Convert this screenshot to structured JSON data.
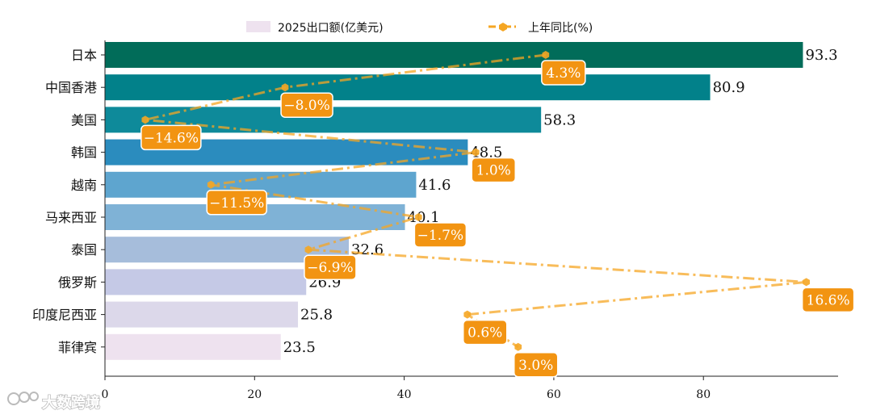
{
  "chart_data": {
    "type": "bar",
    "orientation": "horizontal",
    "categories": [
      "日本",
      "中国香港",
      "美国",
      "韩国",
      "越南",
      "马来西亚",
      "泰国",
      "俄罗斯",
      "印度尼西亚",
      "菲律宾"
    ],
    "series": [
      {
        "name": "2025出口额(亿美元)",
        "type": "bar",
        "values": [
          93.3,
          80.9,
          58.3,
          48.5,
          41.6,
          40.1,
          32.6,
          26.9,
          25.8,
          23.5
        ],
        "value_labels": [
          "93.3",
          "80.9",
          "58.3",
          "48.5",
          "41.6",
          "40.1",
          "32.6",
          "26.9",
          "25.8",
          "23.5"
        ],
        "colors": [
          "#016c59",
          "#02818a",
          "#0e8a9a",
          "#2b8cbe",
          "#5ea5cf",
          "#7fb2d6",
          "#a6bddb",
          "#c5c9e6",
          "#dcd8ea",
          "#eee2ef"
        ]
      },
      {
        "name": "上年同比(%)",
        "type": "line",
        "values": [
          4.3,
          -8.0,
          -14.6,
          1.0,
          -11.5,
          -1.7,
          -6.9,
          16.6,
          0.6,
          3.0
        ],
        "value_labels": [
          "4.3%",
          "−8.0%",
          "−14.6%",
          "1.0%",
          "−11.5%",
          "−1.7%",
          "−6.9%",
          "16.6%",
          "0.6%",
          "3.0%"
        ],
        "color": "#f5a623",
        "label_bg": "#f29412"
      }
    ],
    "xaxis": {
      "ticks": [
        0,
        20,
        40,
        60,
        80
      ],
      "tick_labels": [
        "0",
        "20",
        "40",
        "60",
        "80"
      ],
      "range": [
        0,
        98
      ]
    },
    "yoy_axis_range": [
      -16.5,
      18.1
    ],
    "legend_position": "top"
  },
  "watermark": {
    "text": "大数跨境",
    "icon": "watermark-logo-icon"
  }
}
